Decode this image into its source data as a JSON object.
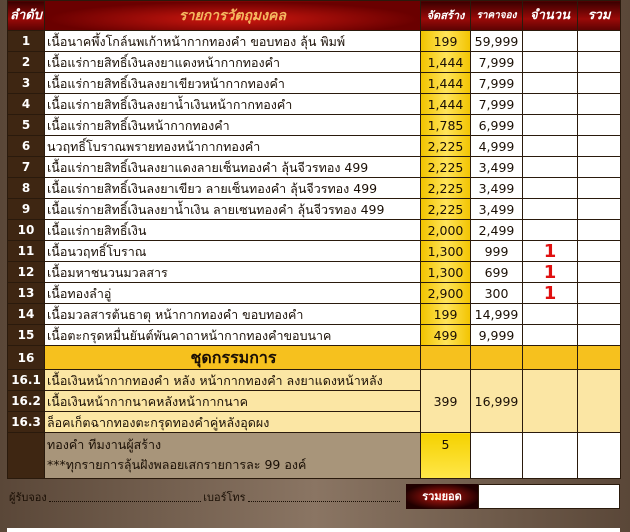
{
  "header": {
    "index": "ลำดับ",
    "item": "รายการวัตถุมงคล",
    "made": "จัดสร้าง",
    "price": "ราคาจอง",
    "count": "จำนวน",
    "total": "รวม"
  },
  "rows": [
    {
      "no": "1",
      "name": "เนื้อนาคพึ้งโกล์นพเก้าหน้ากากทองคำ ขอบทอง ลุ้น พิมพ์",
      "made": "199",
      "price": "59,999",
      "count": ""
    },
    {
      "no": "2",
      "name": "เนื้อแร่กายสิทธิ์เงินลงยาแดงหน้ากากทองคำ",
      "made": "1,444",
      "price": "7,999",
      "count": ""
    },
    {
      "no": "3",
      "name": "เนื้อแร่กายสิทธิ์เงินลงยาเขียวหน้ากากทองคำ",
      "made": "1,444",
      "price": "7,999",
      "count": ""
    },
    {
      "no": "4",
      "name": "เนื้อแร่กายสิทธิ์เงินลงยาน้ำเงินหน้ากากทองคำ",
      "made": "1,444",
      "price": "7,999",
      "count": ""
    },
    {
      "no": "5",
      "name": "เนื้อแร่กายสิทธิ์เงินหน้ากากทองคำ",
      "made": "1,785",
      "price": "6,999",
      "count": ""
    },
    {
      "no": "6",
      "name": "นวฤทธิ์โบราณพรายทองหน้ากากทองคำ",
      "made": "2,225",
      "price": "4,999",
      "count": ""
    },
    {
      "no": "7",
      "name": "เนื้อแร่กายสิทธิ์เงินลงยาแดงลายเซ็นทองคำ ลุ้นจีวรทอง 499",
      "made": "2,225",
      "price": "3,499",
      "count": ""
    },
    {
      "no": "8",
      "name": "เนื้อแร่กายสิทธิ์เงินลงยาเขียว ลายเซ็นทองคำ ลุ้นจีวรทอง 499",
      "made": "2,225",
      "price": "3,499",
      "count": ""
    },
    {
      "no": "9",
      "name": "เนื้อแร่กายสิทธิ์เงินลงยาน้ำเงิน ลายเซนทองคำ ลุ้นจีวรทอง 499",
      "made": "2,225",
      "price": "3,499",
      "count": ""
    },
    {
      "no": "10",
      "name": "เนื้อแร่กายสิทธิ์เงิน",
      "made": "2,000",
      "price": "2,499",
      "count": ""
    },
    {
      "no": "11",
      "name": "เนื้อนวฤทธิ์โบราณ",
      "made": "1,300",
      "price": "999",
      "count": "1"
    },
    {
      "no": "12",
      "name": "เนื้อมหาชนวนมวลสาร",
      "made": "1,300",
      "price": "699",
      "count": "1"
    },
    {
      "no": "13",
      "name": "เนื้อทองลำอู่",
      "made": "2,900",
      "price": "300",
      "count": "1"
    },
    {
      "no": "14",
      "name": "เนื้อมวลสารต้นธาตุ หน้ากากทองคำ ขอบทองคำ",
      "made": "199",
      "price": "14,999",
      "count": ""
    },
    {
      "no": "15",
      "name": "เนื้อตะกรุดหมื่นยันต์พันคาถาหน้ากากทองคำขอบนาค",
      "made": "499",
      "price": "9,999",
      "count": ""
    }
  ],
  "set": {
    "no": "16",
    "name": "ชุดกรรมการ",
    "made": "399",
    "price": "16,999",
    "items": [
      {
        "no": "16.1",
        "name": "เนื้อเงินหน้ากากทองคำ หลัง หน้ากากทองคำ ลงยาแดงหน้าหลัง"
      },
      {
        "no": "16.2",
        "name": "เนื้อเงินหน้ากากนาคหลังหน้ากากนาค"
      },
      {
        "no": "16.3",
        "name": "ล็อคเก็ตฉากทองตะกรุดทองคำคู่หลังอุดผง"
      }
    ]
  },
  "gold": {
    "line1": "ทองคำ ทีมงานผู้สร้าง",
    "line2": "***ทุกรายการลุ้นฝังพลอยเสกรายการละ 99 องค์",
    "made": "5"
  },
  "footer": {
    "booker_label": "ผู้รับจอง",
    "phone_label": "เบอร์โทร",
    "total_label": "รวมยอด",
    "total_value": ""
  }
}
